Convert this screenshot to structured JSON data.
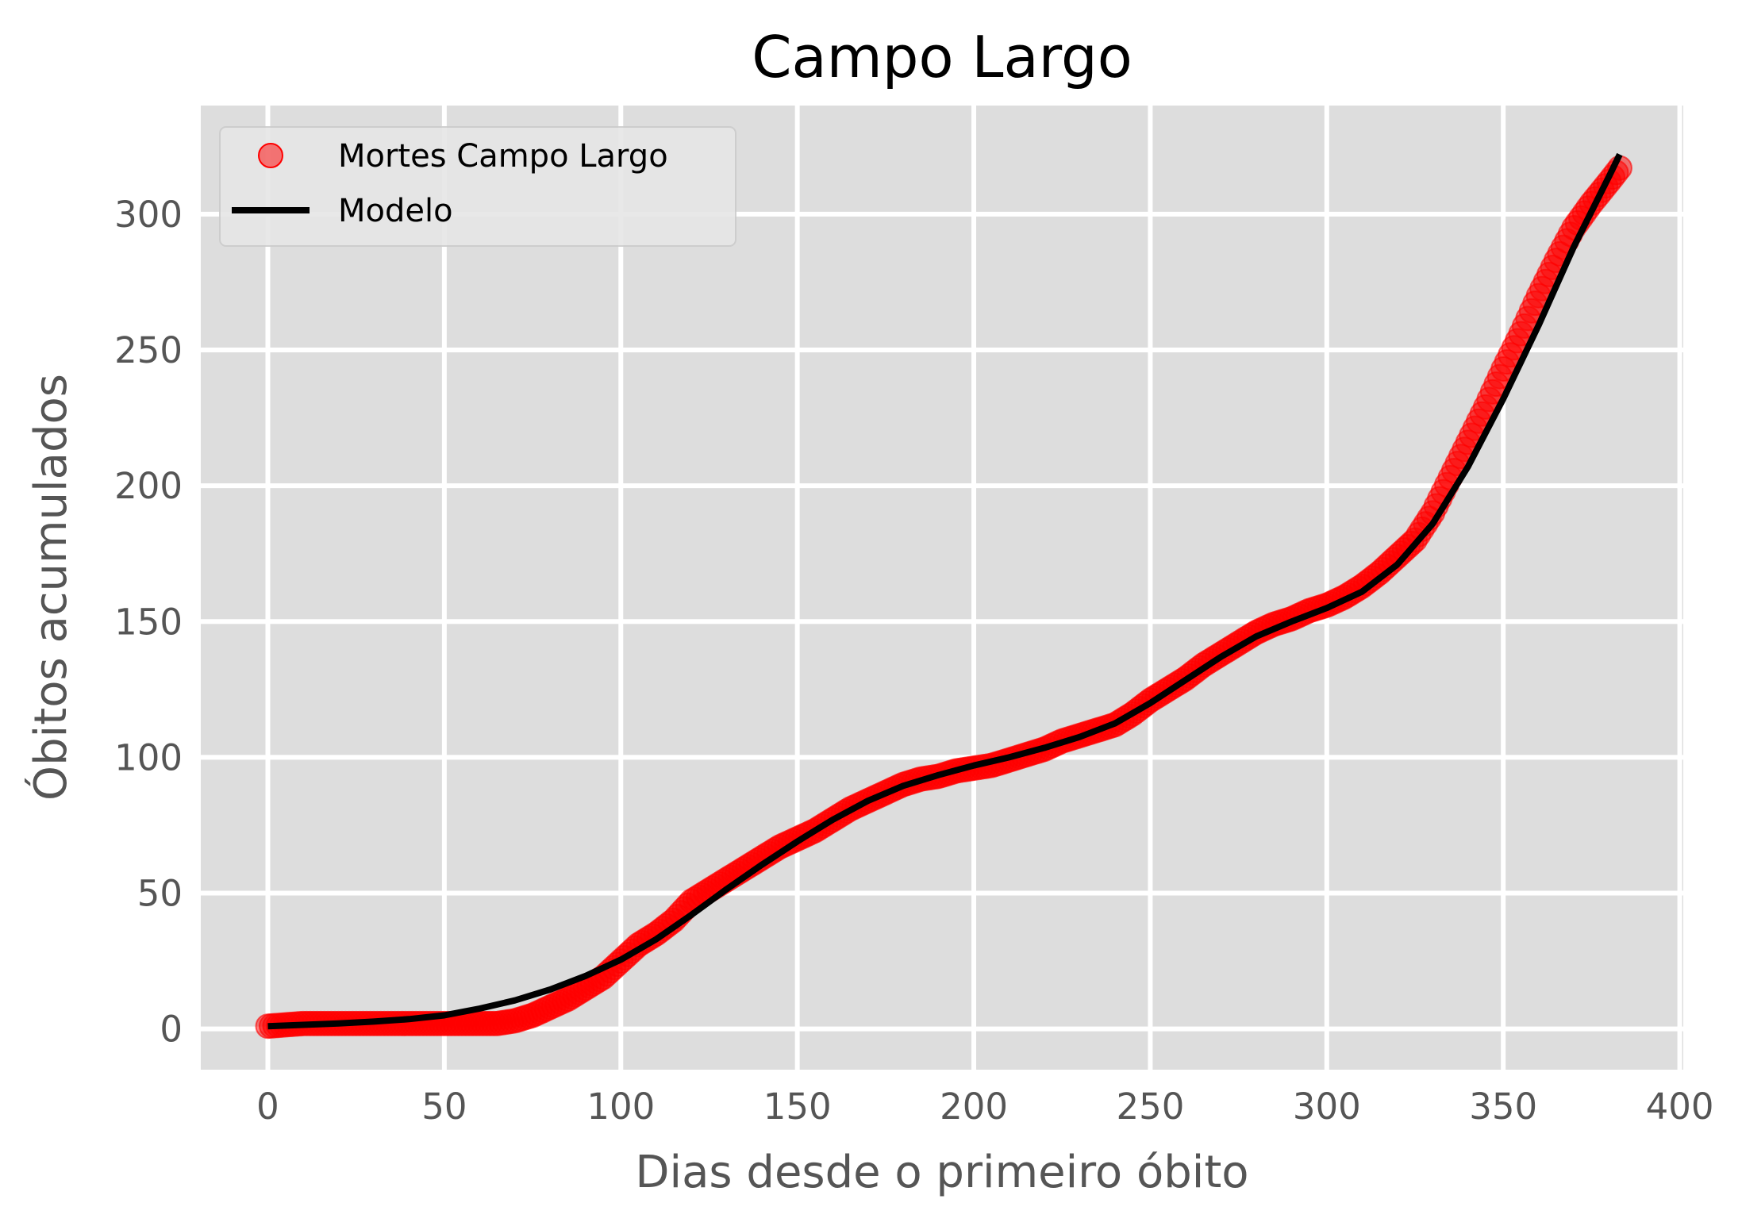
{
  "chart_data": {
    "type": "scatter",
    "title": "Campo Largo",
    "xlabel": "Dias desde o primeiro óbito",
    "ylabel": "Óbitos acumulados",
    "xlim": [
      -19,
      401
    ],
    "ylim": [
      -15,
      340
    ],
    "xticks": [
      0,
      50,
      100,
      150,
      200,
      250,
      300,
      350,
      400
    ],
    "yticks": [
      0,
      50,
      100,
      150,
      200,
      250,
      300
    ],
    "xtick_labels": [
      "0",
      "50",
      "100",
      "150",
      "200",
      "250",
      "300",
      "350",
      "400"
    ],
    "ytick_labels": [
      "0",
      "50",
      "100",
      "150",
      "200",
      "250",
      "300"
    ],
    "grid": true,
    "legend_position": "top-left",
    "series": [
      {
        "name": "Mortes Campo Largo",
        "kind": "points",
        "color": "#ff0000",
        "x": [
          0,
          10,
          20,
          30,
          40,
          50,
          60,
          65,
          70,
          75,
          80,
          85,
          90,
          95,
          100,
          105,
          110,
          115,
          120,
          125,
          130,
          135,
          140,
          145,
          150,
          155,
          160,
          165,
          170,
          175,
          180,
          185,
          190,
          195,
          200,
          205,
          210,
          215,
          220,
          225,
          230,
          235,
          240,
          245,
          250,
          255,
          260,
          265,
          270,
          275,
          280,
          285,
          290,
          295,
          300,
          305,
          310,
          315,
          320,
          325,
          330,
          335,
          340,
          345,
          350,
          355,
          360,
          365,
          370,
          375,
          380,
          383
        ],
        "y": [
          1,
          2,
          2,
          2,
          2,
          2,
          2,
          2,
          3,
          5,
          8,
          11,
          15,
          19,
          25,
          31,
          35,
          40,
          47,
          51,
          55,
          59,
          63,
          67,
          70,
          73,
          77,
          81,
          84,
          87,
          90,
          92,
          93,
          95,
          96,
          97,
          99,
          101,
          103,
          106,
          108,
          110,
          112,
          116,
          121,
          125,
          129,
          134,
          138,
          142,
          146,
          149,
          151,
          154,
          156,
          159,
          163,
          168,
          174,
          180,
          190,
          203,
          216,
          229,
          243,
          256,
          270,
          283,
          295,
          304,
          312,
          317
        ]
      },
      {
        "name": "Modelo",
        "kind": "line",
        "color": "#000000",
        "x": [
          0,
          10,
          20,
          30,
          40,
          50,
          60,
          70,
          80,
          90,
          100,
          110,
          120,
          130,
          140,
          150,
          160,
          170,
          180,
          190,
          200,
          210,
          220,
          230,
          240,
          250,
          260,
          270,
          280,
          290,
          300,
          310,
          320,
          330,
          340,
          350,
          360,
          370,
          380,
          383
        ],
        "y": [
          1,
          1.5,
          2,
          2.7,
          3.6,
          5,
          7.5,
          10.5,
          14.5,
          19.5,
          25.5,
          33,
          42,
          51.5,
          60.5,
          69,
          77,
          84,
          89.5,
          93.5,
          97,
          100,
          103.5,
          107.5,
          112.5,
          120,
          128.5,
          137,
          144.5,
          150,
          155,
          161,
          171,
          186,
          207,
          232,
          259,
          288,
          314,
          322
        ]
      }
    ]
  }
}
